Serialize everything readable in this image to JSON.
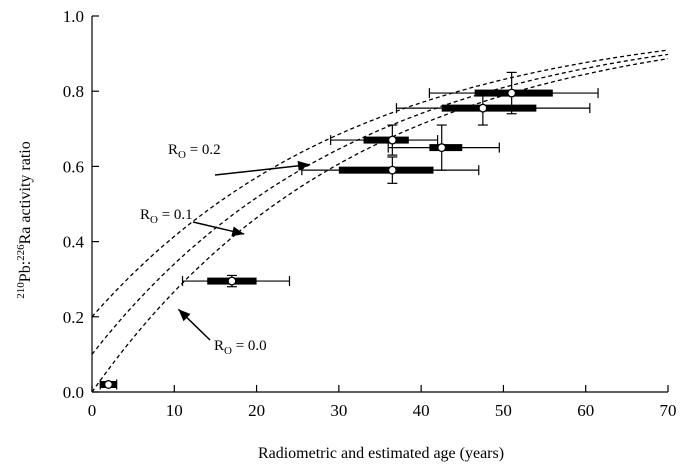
{
  "chart_data": {
    "type": "scatter",
    "xlabel": "Radiometric and estimated age (years)",
    "ylabel": {
      "pb_mass": "210",
      "pb": "Pb:",
      "ra_mass": "226",
      "ra": "Ra activity ratio"
    },
    "xlim": [
      0,
      70
    ],
    "ylim": [
      0,
      1.0
    ],
    "x_ticks": [
      {
        "value": 0,
        "label": "0"
      },
      {
        "value": 10,
        "label": "10"
      },
      {
        "value": 20,
        "label": "20"
      },
      {
        "value": 30,
        "label": "30"
      },
      {
        "value": 40,
        "label": "40"
      },
      {
        "value": 50,
        "label": "50"
      },
      {
        "value": 60,
        "label": "60"
      },
      {
        "value": 70,
        "label": "70"
      }
    ],
    "y_ticks": [
      {
        "value": 0.0,
        "label": "0.0"
      },
      {
        "value": 0.2,
        "label": "0.2"
      },
      {
        "value": 0.4,
        "label": "0.4"
      },
      {
        "value": 0.6,
        "label": "0.6"
      },
      {
        "value": 0.8,
        "label": "0.8"
      },
      {
        "value": 1.0,
        "label": "1.0"
      }
    ],
    "grid": false,
    "curves": [
      {
        "r0": 0.2,
        "line_style": "dashed"
      },
      {
        "r0": 0.1,
        "line_style": "dashed"
      },
      {
        "r0": 0.0,
        "line_style": "dashed"
      }
    ],
    "decay_constant_per_year": 0.0311,
    "annotations": [
      {
        "label_r": "R",
        "label_sub": "O",
        "label_rest": " = 0.2",
        "curve_r0": 0.2,
        "arrow_to": [
          26.5,
          0.605
        ]
      },
      {
        "label_r": "R",
        "label_sub": "O",
        "label_rest": " = 0.1",
        "curve_r0": 0.1,
        "arrow_to": [
          18.5,
          0.42
        ]
      },
      {
        "label_r": "R",
        "label_sub": "O",
        "label_rest": " = 0.0",
        "curve_r0": 0.0,
        "arrow_to": [
          10.5,
          0.22
        ]
      }
    ],
    "points": [
      {
        "x": 2.0,
        "y": 0.02,
        "x_range": [
          1.0,
          3.0
        ],
        "x_est_range": [
          1.0,
          3.0
        ],
        "y_err": [
          0.015,
          0.025
        ]
      },
      {
        "x": 17.0,
        "y": 0.295,
        "x_range": [
          14.0,
          20.0
        ],
        "x_est_range": [
          11.0,
          24.0
        ],
        "y_err": [
          0.28,
          0.31
        ]
      },
      {
        "x": 36.5,
        "y": 0.59,
        "x_range": [
          30.0,
          41.5
        ],
        "x_est_range": [
          25.5,
          47.0
        ],
        "y_err": [
          0.555,
          0.625
        ]
      },
      {
        "x": 36.5,
        "y": 0.67,
        "x_range": [
          33.0,
          38.5
        ],
        "x_est_range": [
          29.0,
          42.0
        ],
        "y_err": [
          0.63,
          0.71
        ]
      },
      {
        "x": 42.5,
        "y": 0.65,
        "x_range": [
          41.0,
          45.0
        ],
        "x_est_range": [
          36.0,
          49.5
        ],
        "y_err": [
          0.59,
          0.71
        ]
      },
      {
        "x": 47.5,
        "y": 0.755,
        "x_range": [
          42.5,
          54.0
        ],
        "x_est_range": [
          37.0,
          60.5
        ],
        "y_err": [
          0.71,
          0.8
        ]
      },
      {
        "x": 51.0,
        "y": 0.795,
        "x_range": [
          46.5,
          56.0
        ],
        "x_est_range": [
          41.0,
          61.5
        ],
        "y_err": [
          0.74,
          0.85
        ]
      }
    ]
  }
}
